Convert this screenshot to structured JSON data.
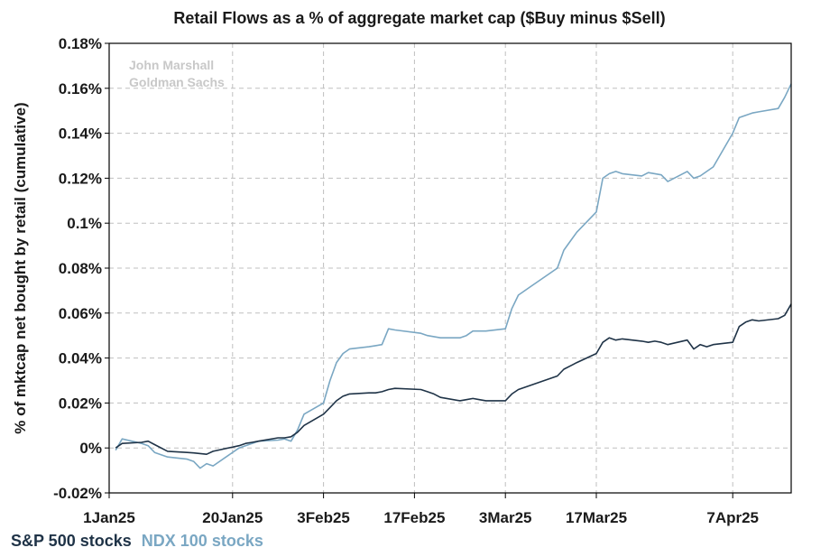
{
  "chart_data": {
    "type": "line",
    "title": "Retail Flows as a % of aggregate market cap ($Buy minus $Sell)",
    "ylabel": "% of mktcap net bought by retail (cumulative)",
    "watermark": [
      "John Marshall",
      "Goldman Sachs"
    ],
    "ylim": [
      -0.02,
      0.18
    ],
    "yticks": [
      -0.02,
      0,
      0.02,
      0.04,
      0.06,
      0.08,
      0.1,
      0.12,
      0.14,
      0.16,
      0.18
    ],
    "ytick_labels": [
      "-0.02%",
      "0%",
      "0.02%",
      "0.04%",
      "0.06%",
      "0.08%",
      "0.1%",
      "0.12%",
      "0.14%",
      "0.16%",
      "0.18%"
    ],
    "xlim": [
      "2025-01-01",
      "2025-04-16"
    ],
    "xticks": [
      "2025-01-01",
      "2025-01-20",
      "2025-02-03",
      "2025-02-17",
      "2025-03-03",
      "2025-03-17",
      "2025-04-07"
    ],
    "xtick_labels": [
      "1Jan25",
      "20Jan25",
      "3Feb25",
      "17Feb25",
      "3Mar25",
      "17Mar25",
      "7Apr25"
    ],
    "grid": true,
    "legend_position": "bottom-left",
    "series": [
      {
        "name": "S&P 500 stocks",
        "color": "#1f3347",
        "x": [
          "2025-01-02",
          "2025-01-03",
          "2025-01-06",
          "2025-01-07",
          "2025-01-08",
          "2025-01-10",
          "2025-01-13",
          "2025-01-14",
          "2025-01-15",
          "2025-01-16",
          "2025-01-17",
          "2025-01-21",
          "2025-01-22",
          "2025-01-23",
          "2025-01-24",
          "2025-01-27",
          "2025-01-28",
          "2025-01-29",
          "2025-01-30",
          "2025-01-31",
          "2025-02-03",
          "2025-02-04",
          "2025-02-05",
          "2025-02-06",
          "2025-02-07",
          "2025-02-10",
          "2025-02-11",
          "2025-02-12",
          "2025-02-13",
          "2025-02-14",
          "2025-02-18",
          "2025-02-19",
          "2025-02-20",
          "2025-02-21",
          "2025-02-24",
          "2025-02-25",
          "2025-02-26",
          "2025-02-27",
          "2025-02-28",
          "2025-03-03",
          "2025-03-04",
          "2025-03-05",
          "2025-03-06",
          "2025-03-07",
          "2025-03-10",
          "2025-03-11",
          "2025-03-12",
          "2025-03-13",
          "2025-03-14",
          "2025-03-17",
          "2025-03-18",
          "2025-03-19",
          "2025-03-20",
          "2025-03-21",
          "2025-03-24",
          "2025-03-25",
          "2025-03-26",
          "2025-03-27",
          "2025-03-28",
          "2025-03-31",
          "2025-04-01",
          "2025-04-02",
          "2025-04-03",
          "2025-04-04",
          "2025-04-07",
          "2025-04-08",
          "2025-04-09",
          "2025-04-10",
          "2025-04-11",
          "2025-04-14",
          "2025-04-15",
          "2025-04-16"
        ],
        "values": [
          0.0,
          0.002,
          0.0025,
          0.003,
          0.0015,
          -0.0015,
          -0.002,
          -0.0022,
          -0.0025,
          -0.0028,
          -0.0015,
          0.001,
          0.002,
          0.0025,
          0.003,
          0.0045,
          0.0045,
          0.005,
          0.007,
          0.01,
          0.015,
          0.018,
          0.021,
          0.023,
          0.024,
          0.0245,
          0.0245,
          0.025,
          0.026,
          0.0265,
          0.026,
          0.025,
          0.024,
          0.0225,
          0.021,
          0.0215,
          0.022,
          0.0215,
          0.021,
          0.021,
          0.024,
          0.026,
          0.027,
          0.028,
          0.031,
          0.032,
          0.035,
          0.0365,
          0.038,
          0.042,
          0.047,
          0.049,
          0.048,
          0.0485,
          0.0475,
          0.047,
          0.0475,
          0.047,
          0.046,
          0.048,
          0.044,
          0.046,
          0.045,
          0.046,
          0.047,
          0.054,
          0.056,
          0.057,
          0.0565,
          0.0575,
          0.059,
          0.064
        ]
      },
      {
        "name": "NDX 100 stocks",
        "color": "#7aa7c3",
        "x": [
          "2025-01-02",
          "2025-01-03",
          "2025-01-06",
          "2025-01-07",
          "2025-01-08",
          "2025-01-10",
          "2025-01-13",
          "2025-01-14",
          "2025-01-15",
          "2025-01-16",
          "2025-01-17",
          "2025-01-21",
          "2025-01-22",
          "2025-01-23",
          "2025-01-24",
          "2025-01-27",
          "2025-01-28",
          "2025-01-29",
          "2025-01-30",
          "2025-01-31",
          "2025-02-03",
          "2025-02-04",
          "2025-02-05",
          "2025-02-06",
          "2025-02-07",
          "2025-02-10",
          "2025-02-11",
          "2025-02-12",
          "2025-02-13",
          "2025-02-14",
          "2025-02-18",
          "2025-02-19",
          "2025-02-20",
          "2025-02-21",
          "2025-02-24",
          "2025-02-25",
          "2025-02-26",
          "2025-02-27",
          "2025-02-28",
          "2025-03-03",
          "2025-03-04",
          "2025-03-05",
          "2025-03-06",
          "2025-03-07",
          "2025-03-10",
          "2025-03-11",
          "2025-03-12",
          "2025-03-13",
          "2025-03-14",
          "2025-03-17",
          "2025-03-18",
          "2025-03-19",
          "2025-03-20",
          "2025-03-21",
          "2025-03-24",
          "2025-03-25",
          "2025-03-26",
          "2025-03-27",
          "2025-03-28",
          "2025-03-31",
          "2025-04-01",
          "2025-04-02",
          "2025-04-03",
          "2025-04-04",
          "2025-04-07",
          "2025-04-08",
          "2025-04-09",
          "2025-04-10",
          "2025-04-11",
          "2025-04-14",
          "2025-04-15",
          "2025-04-16"
        ],
        "values": [
          -0.001,
          0.004,
          0.002,
          0.001,
          -0.002,
          -0.004,
          -0.005,
          -0.006,
          -0.009,
          -0.007,
          -0.008,
          0.0,
          0.001,
          0.002,
          0.003,
          0.0035,
          0.004,
          0.003,
          0.008,
          0.015,
          0.02,
          0.03,
          0.038,
          0.042,
          0.044,
          0.045,
          0.0455,
          0.046,
          0.053,
          0.0525,
          0.051,
          0.05,
          0.0495,
          0.049,
          0.049,
          0.05,
          0.052,
          0.052,
          0.052,
          0.053,
          0.062,
          0.068,
          0.07,
          0.072,
          0.078,
          0.08,
          0.088,
          0.092,
          0.096,
          0.105,
          0.12,
          0.122,
          0.123,
          0.122,
          0.121,
          0.1225,
          0.122,
          0.1215,
          0.1185,
          0.123,
          0.12,
          0.121,
          0.123,
          0.125,
          0.14,
          0.147,
          0.148,
          0.149,
          0.1495,
          0.151,
          0.156,
          0.162
        ]
      }
    ]
  }
}
